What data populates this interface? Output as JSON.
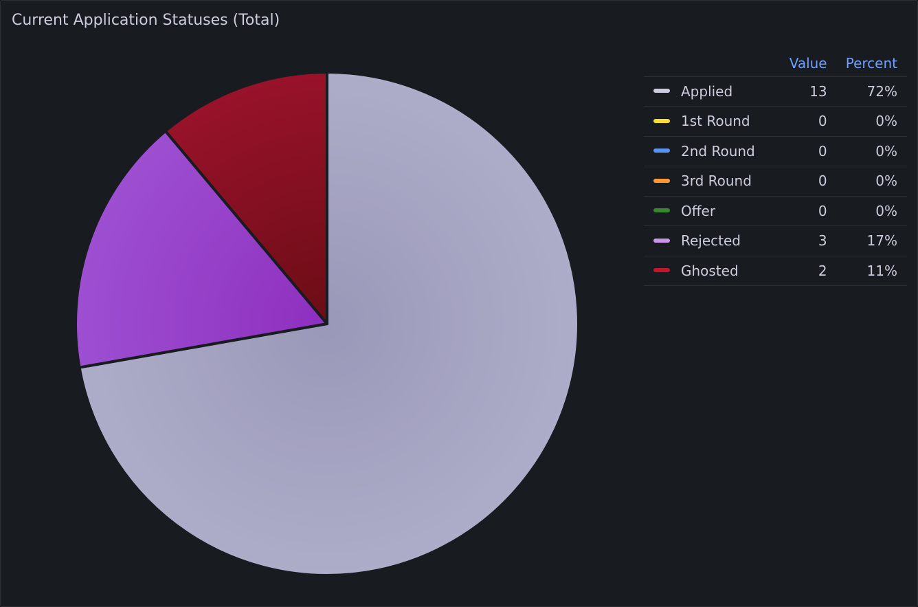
{
  "panel": {
    "title": "Current Application Statuses (Total)"
  },
  "legend": {
    "value_header": "Value",
    "percent_header": "Percent"
  },
  "chart_data": {
    "type": "pie",
    "slices": [
      {
        "name": "Applied",
        "value": 13,
        "percent": "72%",
        "color": "#ccccdc",
        "fill_dark": "#9a98b8",
        "fill_light": "#adadc9"
      },
      {
        "name": "1st Round",
        "value": 0,
        "percent": "0%",
        "color": "#fade2a"
      },
      {
        "name": "2nd Round",
        "value": 0,
        "percent": "0%",
        "color": "#5794f2"
      },
      {
        "name": "3rd Round",
        "value": 0,
        "percent": "0%",
        "color": "#ff9830"
      },
      {
        "name": "Offer",
        "value": 0,
        "percent": "0%",
        "color": "#37872d"
      },
      {
        "name": "Rejected",
        "value": 3,
        "percent": "17%",
        "color": "#ca95e5",
        "fill_dark": "#8e2fbf",
        "fill_light": "#9d4fd1"
      },
      {
        "name": "Ghosted",
        "value": 2,
        "percent": "11%",
        "color": "#c4162a",
        "fill_dark": "#6b0d15",
        "fill_light": "#98122a"
      }
    ]
  }
}
